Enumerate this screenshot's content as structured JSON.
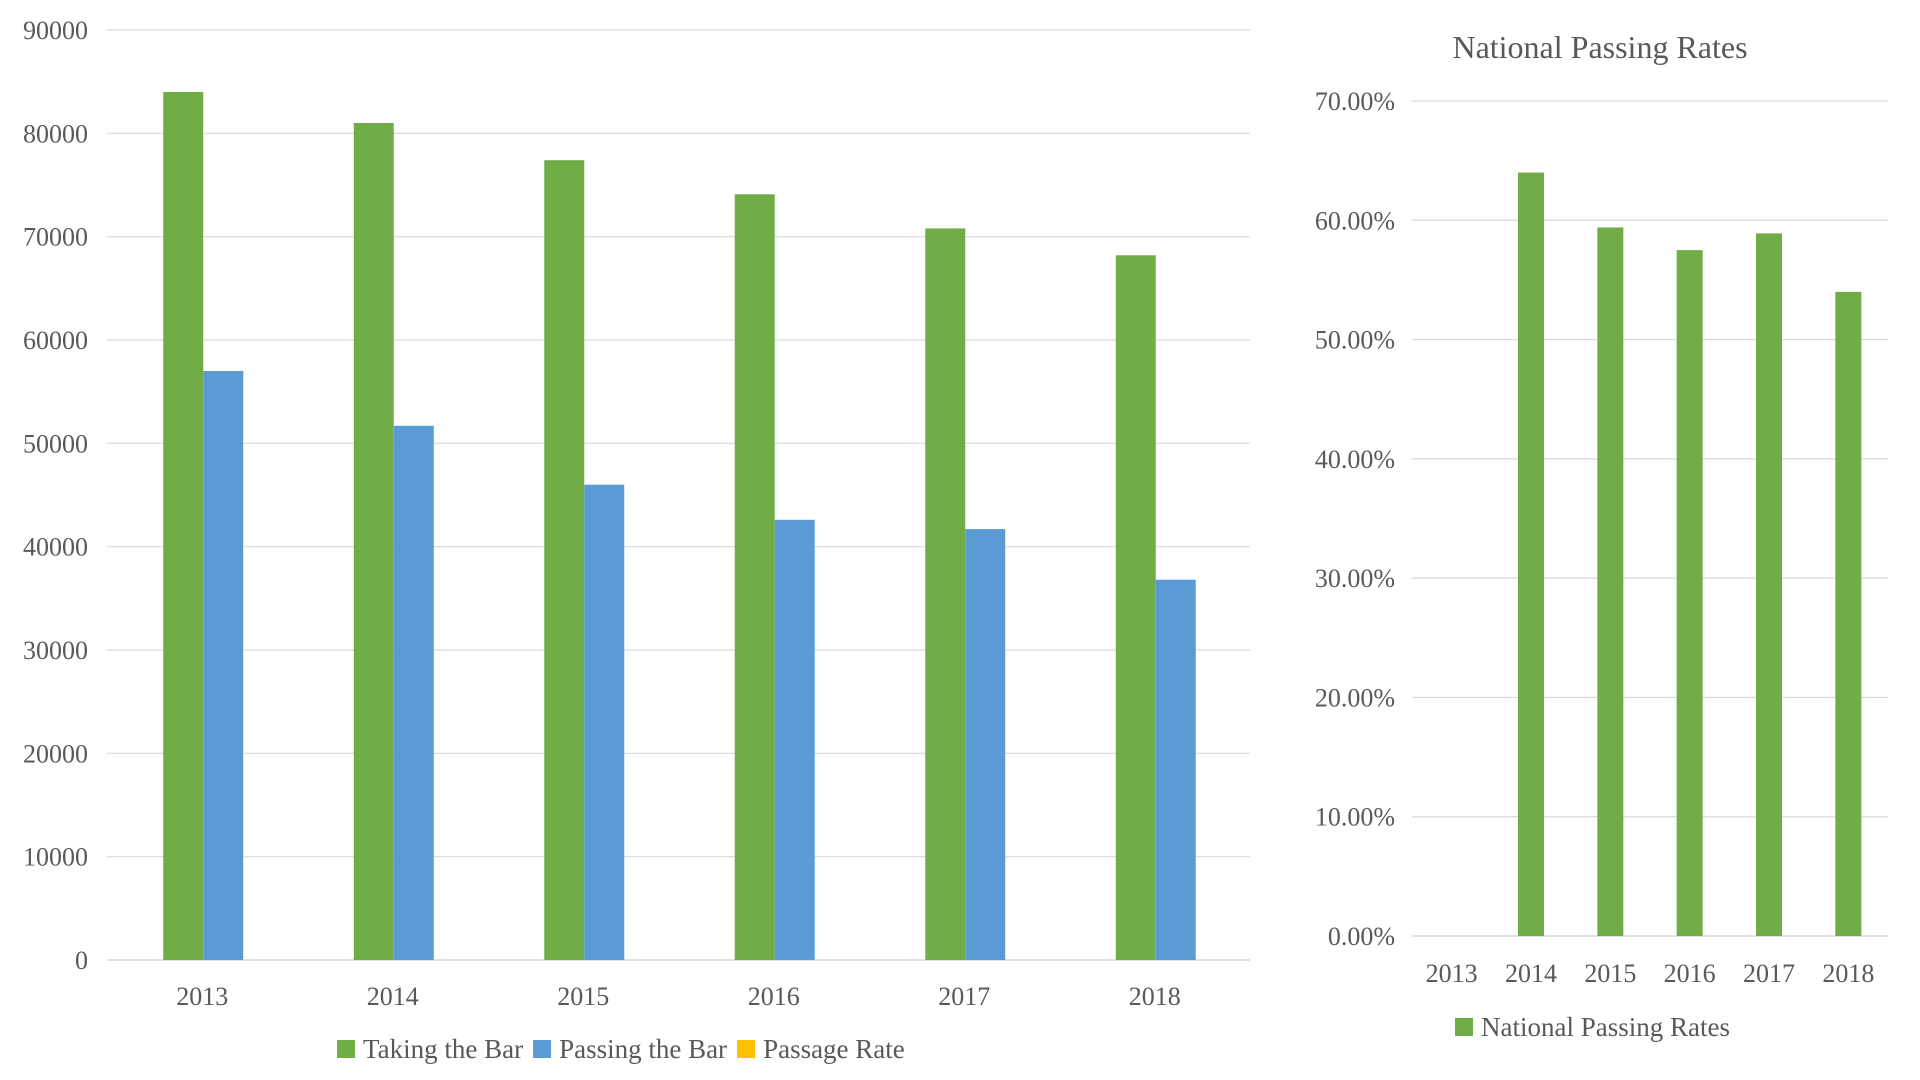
{
  "chart_data": [
    {
      "type": "bar",
      "title": "",
      "xlabel": "",
      "ylabel": "",
      "categories": [
        "2013",
        "2014",
        "2015",
        "2016",
        "2017",
        "2018"
      ],
      "ylim": [
        0,
        90000
      ],
      "yticks": [
        0,
        10000,
        20000,
        30000,
        40000,
        50000,
        60000,
        70000,
        80000,
        90000
      ],
      "ytick_labels": [
        "0",
        "10000",
        "20000",
        "30000",
        "40000",
        "50000",
        "60000",
        "70000",
        "80000",
        "90000"
      ],
      "grid": true,
      "legend_position": "bottom",
      "series": [
        {
          "name": "Taking the Bar",
          "color": "#70ad47",
          "values": [
            84000,
            81000,
            77400,
            74100,
            70800,
            68200
          ]
        },
        {
          "name": "Passing the Bar",
          "color": "#5b9bd5",
          "values": [
            57000,
            51700,
            46000,
            42600,
            41700,
            36800
          ]
        },
        {
          "name": "Passage Rate",
          "color": "#ffc000",
          "values": [
            0.68,
            0.64,
            0.594,
            0.575,
            0.589,
            0.54
          ]
        }
      ]
    },
    {
      "type": "bar",
      "title": "National Passing Rates",
      "xlabel": "",
      "ylabel": "",
      "categories": [
        "2013",
        "2014",
        "2015",
        "2016",
        "2017",
        "2018"
      ],
      "ylim": [
        0,
        0.7
      ],
      "yticks": [
        0,
        0.1,
        0.2,
        0.3,
        0.4,
        0.5,
        0.6,
        0.7
      ],
      "ytick_labels": [
        "0.00%",
        "10.00%",
        "20.00%",
        "30.00%",
        "40.00%",
        "50.00%",
        "60.00%",
        "70.00%"
      ],
      "grid": true,
      "legend_position": "bottom",
      "series": [
        {
          "name": "National Passing Rates",
          "color": "#70ad47",
          "values": [
            null,
            0.64,
            0.594,
            0.575,
            0.589,
            0.54
          ]
        }
      ]
    }
  ]
}
